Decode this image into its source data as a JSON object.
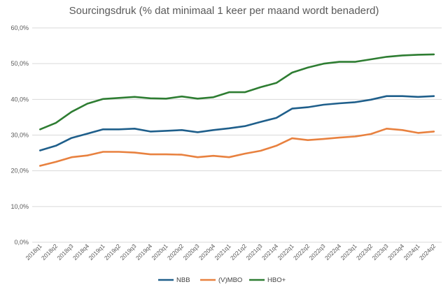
{
  "chart_data": {
    "type": "line",
    "title": "Sourcingsdruk (% dat minimaal 1 keer per maand wordt benaderd)",
    "xlabel": "",
    "ylabel": "",
    "ylim": [
      0,
      60
    ],
    "yticks": [
      "0,0%",
      "10,0%",
      "20,0%",
      "30,0%",
      "40,0%",
      "50,0%",
      "60,0%"
    ],
    "grid": true,
    "legend_position": "bottom",
    "categories": [
      "2018q1",
      "2018q2",
      "2018q3",
      "2018q4",
      "2019q1",
      "2019q2",
      "2019q3",
      "2019q4",
      "2020q1",
      "2020q2",
      "2020q3",
      "2020q4",
      "2021q1",
      "2021q2",
      "2021q3",
      "2021q4",
      "2022q1",
      "2022q2",
      "2022q3",
      "2022q4",
      "2023q1",
      "2023q2",
      "2023q3",
      "2023q4",
      "2024q1",
      "2024q2"
    ],
    "series": [
      {
        "name": "NBB",
        "color": "#1f5f8b",
        "values": [
          25.7,
          27.0,
          29.2,
          30.4,
          31.6,
          31.6,
          31.8,
          31.0,
          31.2,
          31.4,
          30.8,
          31.4,
          31.9,
          32.5,
          33.7,
          34.8,
          37.4,
          37.8,
          38.5,
          38.9,
          39.2,
          39.9,
          40.9,
          40.9,
          40.7,
          40.9
        ]
      },
      {
        "name": "(V)MBO",
        "color": "#e8813f",
        "values": [
          21.4,
          22.5,
          23.8,
          24.3,
          25.3,
          25.3,
          25.1,
          24.6,
          24.6,
          24.5,
          23.8,
          24.2,
          23.8,
          24.8,
          25.6,
          27.0,
          29.1,
          28.6,
          28.9,
          29.3,
          29.6,
          30.3,
          31.8,
          31.4,
          30.6,
          31.0
        ]
      },
      {
        "name": "HBO+",
        "color": "#2e7d32",
        "values": [
          31.6,
          33.4,
          36.5,
          38.8,
          40.1,
          40.4,
          40.7,
          40.3,
          40.2,
          40.8,
          40.2,
          40.6,
          42.0,
          42.0,
          43.4,
          44.6,
          47.5,
          48.9,
          50.0,
          50.5,
          50.5,
          51.2,
          51.9,
          52.3,
          52.5,
          52.6
        ]
      }
    ]
  }
}
